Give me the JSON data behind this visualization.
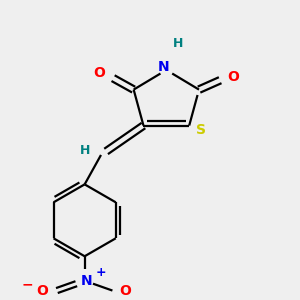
{
  "bg_color": "#efefef",
  "bond_color": "#000000",
  "atom_colors": {
    "O": "#ff0000",
    "N": "#0000ee",
    "S": "#cccc00",
    "H": "#008080",
    "C": "#000000"
  },
  "font_size": 10,
  "linewidth": 1.6
}
